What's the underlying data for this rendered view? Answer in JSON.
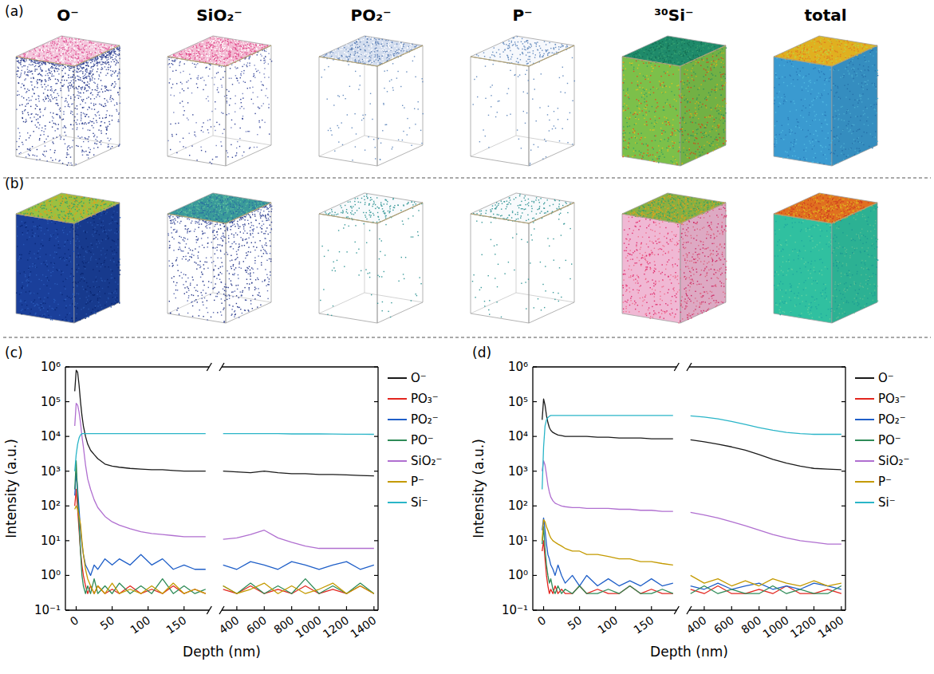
{
  "cube_labels": [
    "O⁻",
    "SiO₂⁻",
    "PO₂⁻",
    "P⁻",
    "³⁰Si⁻",
    "total"
  ],
  "cube_rows": [
    {
      "label": "(a)"
    },
    {
      "label": "(b)"
    }
  ],
  "chart_data": [
    {
      "type": "line",
      "panel_label": "(c)",
      "x_label": "Depth (nm)",
      "y_label": "Intensity (a.u.)",
      "log": "y",
      "grid": false,
      "legend": "right",
      "xlim": [
        -15,
        1430
      ],
      "xbreak": [
        185,
        290
      ],
      "xticks": [
        0,
        50,
        100,
        150,
        400,
        600,
        800,
        1000,
        1200,
        1400
      ],
      "ylim": [
        0.1,
        1000000
      ],
      "yticks": [
        {
          "value": 0.1,
          "label": "10⁻¹"
        },
        {
          "value": 1,
          "label": "10⁰"
        },
        {
          "value": 10,
          "label": "10¹"
        },
        {
          "value": 100,
          "label": "10²"
        },
        {
          "value": 1000,
          "label": "10³"
        },
        {
          "value": 10000,
          "label": "10⁴"
        },
        {
          "value": 100000,
          "label": "10⁵"
        },
        {
          "value": 1000000,
          "label": "10⁶"
        }
      ],
      "x": [
        -2,
        0,
        2,
        4,
        6,
        8,
        10,
        13,
        16,
        20,
        25,
        30,
        40,
        50,
        60,
        75,
        90,
        105,
        120,
        135,
        150,
        165,
        180,
        240,
        300,
        400,
        500,
        600,
        700,
        800,
        900,
        1000,
        1100,
        1200,
        1300,
        1400
      ],
      "series": [
        {
          "name": "O⁻",
          "color": "#1a1a1a",
          "values": [
            200000,
            800000,
            700000,
            300000,
            100000,
            40000,
            20000,
            10000,
            6000,
            4000,
            3000,
            2300,
            1600,
            1400,
            1300,
            1200,
            1150,
            1100,
            1100,
            1050,
            1000,
            1000,
            1000,
            null,
            1000,
            950,
            900,
            1000,
            900,
            850,
            850,
            800,
            800,
            780,
            750,
            730
          ]
        },
        {
          "name": "PO₃⁻",
          "color": "#e3261f",
          "values": [
            100,
            300,
            80,
            20,
            5,
            2,
            1,
            0.5,
            0.3,
            0.5,
            0.3,
            0.5,
            0.3,
            0.4,
            0.3,
            0.5,
            0.3,
            0.4,
            0.3,
            0.5,
            0.3,
            0.4,
            0.3,
            null,
            0.4,
            0.3,
            0.5,
            0.3,
            0.4,
            0.3,
            0.5,
            0.3,
            0.4,
            0.3,
            0.5,
            0.3
          ]
        },
        {
          "name": "PO₂⁻",
          "color": "#1f5fc8",
          "values": [
            200,
            900,
            300,
            80,
            20,
            8,
            4,
            2,
            1.5,
            1,
            2,
            1.5,
            3,
            2,
            3,
            2,
            4,
            2,
            3,
            1.5,
            2,
            1.5,
            1.5,
            null,
            2,
            1.5,
            2.5,
            2,
            1.5,
            2.5,
            2,
            1.5,
            2,
            2.5,
            1.5,
            2
          ]
        },
        {
          "name": "PO⁻",
          "color": "#2e8b57",
          "values": [
            300,
            2000,
            200,
            30,
            5,
            1,
            0.5,
            0.3,
            0.5,
            0.3,
            0.8,
            0.3,
            0.5,
            0.3,
            0.6,
            0.3,
            0.5,
            0.3,
            0.8,
            0.3,
            0.5,
            0.3,
            0.4,
            null,
            0.5,
            0.3,
            0.6,
            0.3,
            0.5,
            0.3,
            0.8,
            0.3,
            0.5,
            0.3,
            0.6,
            0.3
          ]
        },
        {
          "name": "SiO₂⁻",
          "color": "#b06fd0",
          "values": [
            20000,
            90000,
            80000,
            50000,
            25000,
            10000,
            5000,
            1500,
            600,
            300,
            150,
            90,
            50,
            35,
            28,
            22,
            18,
            16,
            15,
            14,
            13,
            13,
            13,
            null,
            11,
            12,
            15,
            20,
            12,
            9,
            7,
            6,
            6,
            6,
            6,
            6
          ]
        },
        {
          "name": "P⁻",
          "color": "#c49a00",
          "values": [
            80,
            100,
            80,
            50,
            30,
            10,
            4,
            1.5,
            0.8,
            0.5,
            0.3,
            0.5,
            0.3,
            0.6,
            0.3,
            0.4,
            0.3,
            0.5,
            0.3,
            0.6,
            0.3,
            0.4,
            0.3,
            null,
            0.5,
            0.3,
            0.4,
            0.6,
            0.3,
            0.5,
            0.3,
            0.4,
            0.6,
            0.3,
            0.5,
            0.3
          ]
        },
        {
          "name": "Si⁻",
          "color": "#2ab5c8",
          "values": [
            1000,
            3000,
            6000,
            9000,
            11000,
            12000,
            12000,
            12000,
            12000,
            12000,
            12000,
            12000,
            12000,
            12000,
            12000,
            12000,
            12000,
            12000,
            12000,
            12000,
            12000,
            12000,
            12000,
            null,
            12000,
            12000,
            12000,
            12000,
            12000,
            11800,
            11800,
            11800,
            11700,
            11600,
            11600,
            11500
          ]
        }
      ]
    },
    {
      "type": "line",
      "panel_label": "(d)",
      "x_label": "Depth (nm)",
      "y_label": "Intensity (a.u.)",
      "log": "y",
      "grid": false,
      "legend": "right",
      "xlim": [
        -15,
        1430
      ],
      "xbreak": [
        185,
        290
      ],
      "xticks": [
        0,
        50,
        100,
        150,
        400,
        600,
        800,
        1000,
        1200,
        1400
      ],
      "ylim": [
        0.1,
        1000000
      ],
      "yticks": [
        {
          "value": 0.1,
          "label": "10⁻¹"
        },
        {
          "value": 1,
          "label": "10⁰"
        },
        {
          "value": 10,
          "label": "10¹"
        },
        {
          "value": 100,
          "label": "10²"
        },
        {
          "value": 1000,
          "label": "10³"
        },
        {
          "value": 10000,
          "label": "10⁴"
        },
        {
          "value": 100000,
          "label": "10⁵"
        },
        {
          "value": 1000000,
          "label": "10⁶"
        }
      ],
      "x": [
        -2,
        0,
        2,
        4,
        6,
        8,
        10,
        13,
        16,
        20,
        25,
        30,
        40,
        50,
        60,
        75,
        90,
        105,
        120,
        135,
        150,
        165,
        180,
        240,
        300,
        400,
        500,
        600,
        700,
        800,
        900,
        1000,
        1100,
        1200,
        1300,
        1400
      ],
      "series": [
        {
          "name": "O⁻",
          "color": "#1a1a1a",
          "values": [
            30000,
            120000,
            80000,
            40000,
            25000,
            18000,
            15000,
            13000,
            12000,
            11000,
            10500,
            10000,
            10000,
            10000,
            10000,
            9500,
            9500,
            9000,
            9000,
            9000,
            8500,
            8500,
            8500,
            null,
            8000,
            7000,
            6000,
            5000,
            4000,
            3000,
            2200,
            1700,
            1400,
            1200,
            1150,
            1100
          ]
        },
        {
          "name": "PO₃⁻",
          "color": "#e3261f",
          "values": [
            5,
            10,
            3,
            1,
            0.5,
            0.3,
            0.4,
            0.3,
            0.5,
            0.3,
            0.4,
            0.3,
            0.3,
            0.5,
            0.3,
            0.4,
            0.3,
            0.3,
            0.5,
            0.3,
            0.4,
            0.3,
            0.3,
            null,
            0.4,
            0.3,
            0.5,
            0.3,
            0.3,
            0.4,
            0.3,
            0.5,
            0.3,
            0.3,
            0.4,
            0.3
          ]
        },
        {
          "name": "PO₂⁻",
          "color": "#1f5fc8",
          "values": [
            20,
            45,
            20,
            8,
            4,
            3,
            2,
            1.5,
            1,
            2,
            1,
            0.6,
            1,
            0.5,
            1,
            0.5,
            0.8,
            0.5,
            0.7,
            0.5,
            0.8,
            0.5,
            0.6,
            null,
            0.5,
            0.4,
            0.6,
            0.4,
            0.5,
            0.6,
            0.4,
            0.5,
            0.4,
            0.6,
            0.5,
            0.4
          ]
        },
        {
          "name": "PO⁻",
          "color": "#2e8b57",
          "values": [
            8,
            25,
            6,
            2,
            1,
            0.6,
            0.8,
            0.4,
            0.3,
            0.5,
            0.3,
            0.4,
            0.3,
            0.5,
            0.3,
            0.3,
            0.4,
            0.3,
            0.5,
            0.3,
            0.3,
            0.4,
            0.3,
            null,
            0.3,
            0.5,
            0.3,
            0.4,
            0.3,
            0.3,
            0.5,
            0.3,
            0.4,
            0.3,
            0.3,
            0.5
          ]
        },
        {
          "name": "SiO₂⁻",
          "color": "#b06fd0",
          "values": [
            1000,
            2000,
            1500,
            800,
            400,
            250,
            180,
            140,
            120,
            110,
            100,
            95,
            90,
            90,
            85,
            85,
            85,
            80,
            80,
            75,
            75,
            70,
            70,
            null,
            65,
            55,
            45,
            35,
            27,
            20,
            15,
            12,
            10,
            9,
            8,
            8
          ]
        },
        {
          "name": "P⁻",
          "color": "#c49a00",
          "values": [
            10,
            40,
            35,
            25,
            20,
            15,
            12,
            10,
            9,
            8,
            7,
            6,
            5,
            5,
            4,
            4,
            3.5,
            3,
            3,
            2.5,
            2.5,
            2.2,
            2,
            null,
            1,
            0.6,
            0.8,
            0.5,
            0.7,
            0.5,
            0.8,
            0.6,
            0.5,
            0.7,
            0.5,
            0.6
          ]
        },
        {
          "name": "Si⁻",
          "color": "#2ab5c8",
          "values": [
            300,
            5000,
            20000,
            30000,
            35000,
            38000,
            40000,
            40000,
            40000,
            40000,
            40000,
            40000,
            40000,
            40000,
            40000,
            40000,
            40000,
            40000,
            40000,
            40000,
            40000,
            40000,
            40000,
            null,
            39000,
            36000,
            32000,
            27000,
            22000,
            18000,
            15000,
            13000,
            12000,
            11500,
            11500,
            11500
          ]
        }
      ]
    }
  ]
}
